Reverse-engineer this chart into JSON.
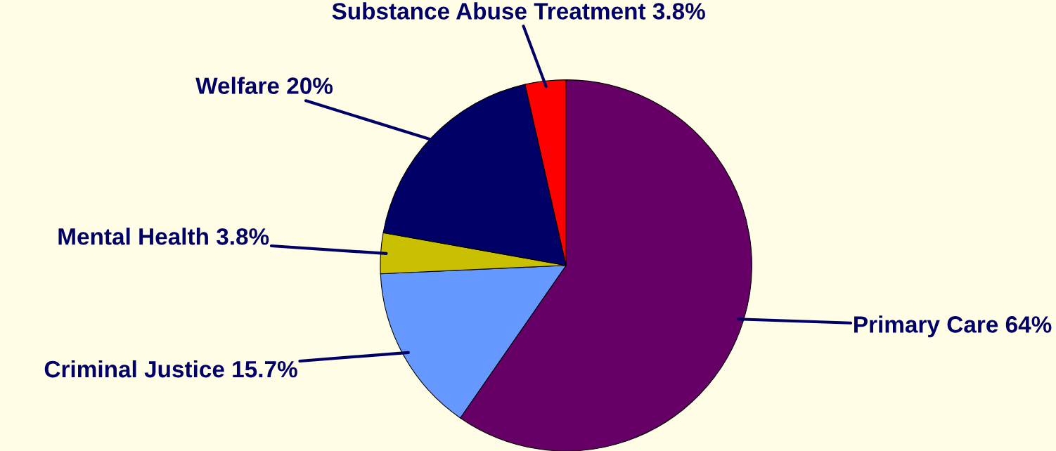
{
  "chart_data": {
    "type": "pie",
    "categories": [
      "Primary Care",
      "Criminal Justice",
      "Mental Health",
      "Welfare",
      "Substance Abuse Treatment"
    ],
    "values": [
      64,
      15.7,
      3.8,
      20,
      3.8
    ],
    "value_labels": [
      "64%",
      "15.7%",
      "3.8%",
      "20%",
      "3.8%"
    ],
    "colors": [
      "#660066",
      "#6699ff",
      "#c8c000",
      "#000066",
      "#ff0000"
    ],
    "legend": false
  }
}
